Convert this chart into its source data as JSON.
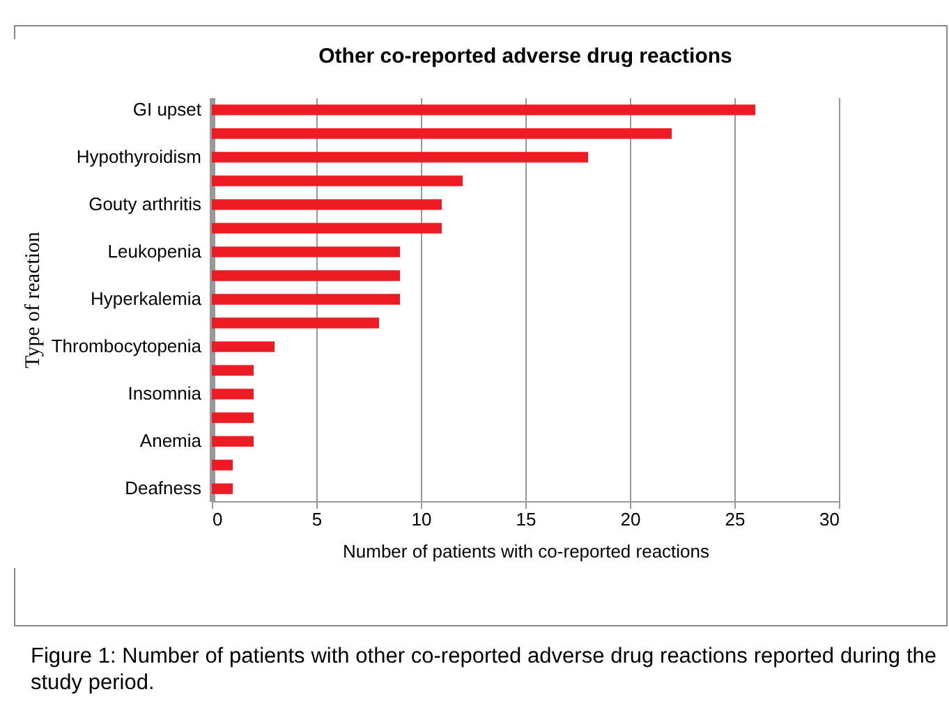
{
  "chart_data": {
    "type": "bar",
    "orientation": "horizontal",
    "title": "Other co-reported adverse drug reactions",
    "xlabel": "Number of patients with co-reported reactions",
    "ylabel": "Type of reaction",
    "categories": [
      "GI upset",
      null,
      "Hypothyroidism",
      null,
      "Gouty arthritis",
      null,
      "Leukopenia",
      null,
      "Hyperkalemia",
      null,
      "Thrombocytopenia",
      null,
      "Insomnia",
      null,
      "Anemia",
      null,
      "Deafness"
    ],
    "values": [
      26,
      22,
      18,
      12,
      11,
      11,
      9,
      9,
      9,
      8,
      3,
      2,
      2,
      2,
      2,
      1,
      1
    ],
    "color": "#ed1c24",
    "xlim": [
      0,
      30
    ],
    "xticks": [
      0,
      5,
      10,
      15,
      20,
      25,
      30
    ],
    "grid": "x",
    "annotations": [
      "Figure 1: Number of patients with other co-reported adverse drug reactions reported during the study period."
    ]
  }
}
